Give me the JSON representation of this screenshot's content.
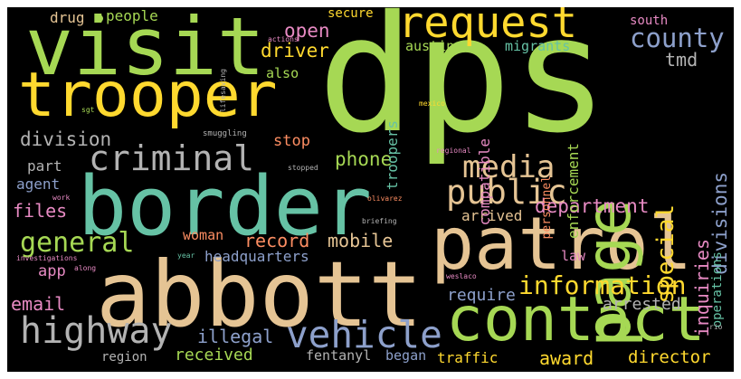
{
  "palette": {
    "green": "#a6d854",
    "teal": "#66c2a5",
    "yellow": "#ffd92f",
    "tan": "#e5c494",
    "orange": "#fc8d62",
    "blue": "#8da0cb",
    "pink": "#e78ac3",
    "gray": "#b3b3b3"
  },
  "words": [
    {
      "text": "dps",
      "color": "green"
    },
    {
      "text": "border",
      "color": "teal"
    },
    {
      "text": "abbott",
      "color": "tan"
    },
    {
      "text": "patrol",
      "color": "tan"
    },
    {
      "text": "visit",
      "color": "green"
    },
    {
      "text": "trooper",
      "color": "yellow"
    },
    {
      "text": "contact",
      "color": "green"
    },
    {
      "text": "page",
      "color": "green"
    },
    {
      "text": "request",
      "color": "yellow"
    },
    {
      "text": "criminal",
      "color": "gray"
    },
    {
      "text": "highway",
      "color": "gray"
    },
    {
      "text": "vehicle",
      "color": "blue"
    },
    {
      "text": "public",
      "color": "tan"
    },
    {
      "text": "media",
      "color": "tan"
    },
    {
      "text": "general",
      "color": "green"
    },
    {
      "text": "information",
      "color": "yellow"
    },
    {
      "text": "county",
      "color": "blue"
    },
    {
      "text": "special",
      "color": "yellow"
    },
    {
      "text": "division",
      "color": "gray"
    },
    {
      "text": "department",
      "color": "pink"
    },
    {
      "text": "record",
      "color": "orange"
    },
    {
      "text": "mobile",
      "color": "tan"
    },
    {
      "text": "divisions",
      "color": "blue"
    },
    {
      "text": "inquiries",
      "color": "pink"
    },
    {
      "text": "phone",
      "color": "green"
    },
    {
      "text": "open",
      "color": "pink"
    },
    {
      "text": "driver",
      "color": "yellow"
    },
    {
      "text": "files",
      "color": "pink"
    },
    {
      "text": "email",
      "color": "pink"
    },
    {
      "text": "illegal",
      "color": "blue"
    },
    {
      "text": "tmd",
      "color": "gray"
    },
    {
      "text": "award",
      "color": "yellow"
    },
    {
      "text": "director",
      "color": "yellow"
    },
    {
      "text": "stop",
      "color": "orange"
    },
    {
      "text": "require",
      "color": "blue"
    },
    {
      "text": "arrested",
      "color": "gray"
    },
    {
      "text": "received",
      "color": "green"
    },
    {
      "text": "part",
      "color": "gray"
    },
    {
      "text": "agent",
      "color": "blue"
    },
    {
      "text": "app",
      "color": "pink"
    },
    {
      "text": "headquarters",
      "color": "blue"
    },
    {
      "text": "arrived",
      "color": "tan"
    },
    {
      "text": "traffic",
      "color": "yellow"
    },
    {
      "text": "compatible",
      "color": "pink"
    },
    {
      "text": "troopers",
      "color": "teal"
    },
    {
      "text": "enforcement",
      "color": "green"
    },
    {
      "text": "operations",
      "color": "teal"
    },
    {
      "text": "personnel",
      "color": "orange"
    },
    {
      "text": "woman",
      "color": "orange"
    },
    {
      "text": "law",
      "color": "pink"
    },
    {
      "text": "fentanyl",
      "color": "gray"
    },
    {
      "text": "began",
      "color": "blue"
    },
    {
      "text": "region",
      "color": "gray"
    },
    {
      "text": "drug",
      "color": "tan"
    },
    {
      "text": "people",
      "color": "green"
    },
    {
      "text": "secure",
      "color": "yellow"
    },
    {
      "text": "austin",
      "color": "green"
    },
    {
      "text": "migrants",
      "color": "teal"
    },
    {
      "text": "also",
      "color": "green"
    },
    {
      "text": "south",
      "color": "pink"
    },
    {
      "text": "lifesaving",
      "color": "gray"
    },
    {
      "text": "actions",
      "color": "pink"
    },
    {
      "text": "sgt",
      "color": "green"
    },
    {
      "text": "smuggling",
      "color": "gray"
    },
    {
      "text": "mexico",
      "color": "yellow"
    },
    {
      "text": "regional",
      "color": "pink"
    },
    {
      "text": "stopped",
      "color": "gray"
    },
    {
      "text": "olivarez",
      "color": "orange"
    },
    {
      "text": "work",
      "color": "pink"
    },
    {
      "text": "briefing",
      "color": "gray"
    },
    {
      "text": "weslaco",
      "color": "pink"
    },
    {
      "text": "investigations",
      "color": "pink"
    },
    {
      "text": "year",
      "color": "teal"
    },
    {
      "text": "along",
      "color": "pink"
    },
    {
      "text": "rio",
      "color": "gray"
    }
  ]
}
